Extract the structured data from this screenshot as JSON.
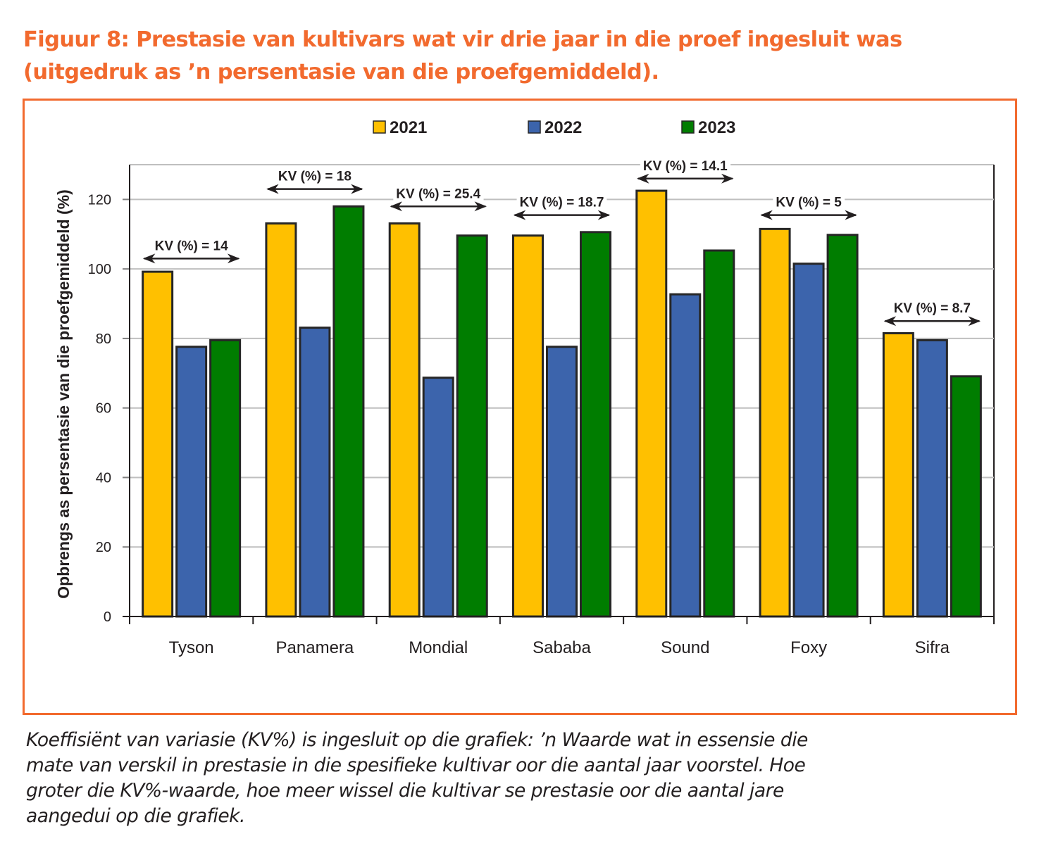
{
  "figure": {
    "title_lines": [
      "Figuur 8: Prestasie van kultivars wat vir drie jaar in die proef ingesluit was",
      "(uitgedruk as ’n persentasie van die proefgemiddeld)."
    ],
    "caption_lines": [
      "Koeffisiënt van variasie (KV%) is ingesluit op die grafiek: ’n Waarde wat in essensie die",
      "mate van verskil in prestasie in die spesifieke kultivar oor die aantal jaar voorstel. Hoe",
      "groter die KV%-waarde, hoe meer wissel die kultivar se prestasie oor die aantal jare",
      "aangedui op die grafiek."
    ],
    "accent_color": "#f26a2e"
  },
  "chart_data": {
    "type": "bar",
    "title": "",
    "xlabel": "",
    "ylabel": "Opbrengs as persentasie van die proefgemiddeld (%)",
    "ylim": [
      0,
      130
    ],
    "yticks": [
      0,
      20,
      40,
      60,
      80,
      100,
      120
    ],
    "grid": true,
    "legend_position": "top-center",
    "categories": [
      "Tyson",
      "Panamera",
      "Mondial",
      "Sababa",
      "Sound",
      "Foxy",
      "Sifra"
    ],
    "series": [
      {
        "name": "2021",
        "color": "#ffc000",
        "values": [
          99.2,
          113.1,
          113.1,
          109.6,
          122.5,
          111.5,
          81.5
        ]
      },
      {
        "name": "2022",
        "color": "#3c64ac",
        "values": [
          77.6,
          83.1,
          68.7,
          77.6,
          92.7,
          101.5,
          79.5
        ]
      },
      {
        "name": "2023",
        "color": "#007d00",
        "values": [
          79.5,
          118.0,
          109.6,
          110.6,
          105.3,
          109.8,
          69.1
        ]
      }
    ],
    "annotations": [
      {
        "category": "Tyson",
        "label": "KV (%) = 14",
        "kv": 14,
        "level": 103
      },
      {
        "category": "Panamera",
        "label": "KV (%) = 18",
        "kv": 18,
        "level": 123
      },
      {
        "category": "Mondial",
        "label": "KV (%) = 25.4",
        "kv": 25.4,
        "level": 118
      },
      {
        "category": "Sababa",
        "label": "KV (%) = 18.7",
        "kv": 18.7,
        "level": 115.5
      },
      {
        "category": "Sound",
        "label": "KV (%) = 14.1",
        "kv": 14.1,
        "level": 126
      },
      {
        "category": "Foxy",
        "label": "KV (%) = 5",
        "kv": 5,
        "level": 115.5
      },
      {
        "category": "Sifra",
        "label": "KV (%) = 8.7",
        "kv": 8.7,
        "level": 85
      }
    ]
  }
}
